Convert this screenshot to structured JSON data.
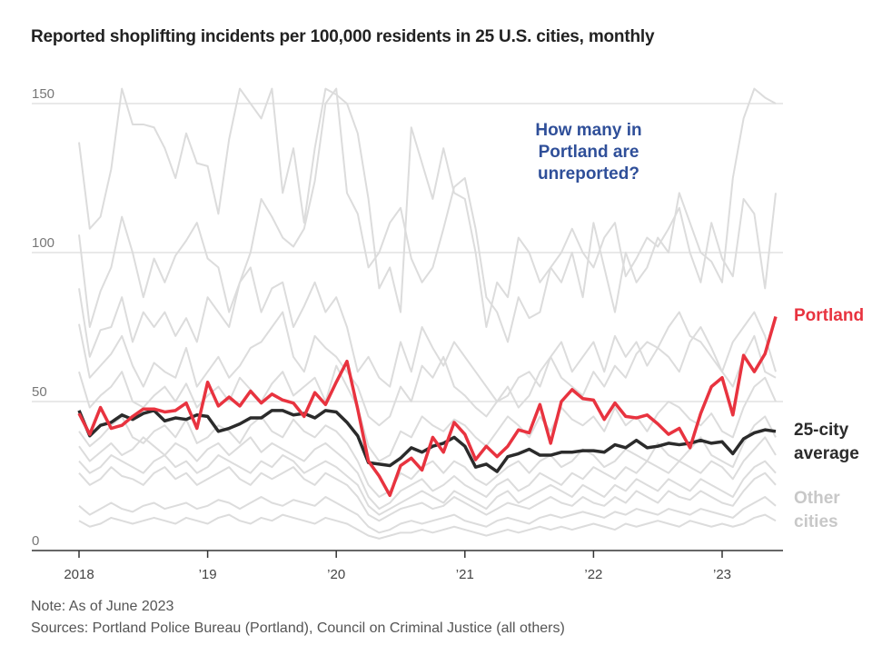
{
  "chart_data": {
    "type": "line",
    "title": "Reported shoplifting incidents per 100,000 residents in 25 U.S. cities, monthly",
    "x_start": "2018-01",
    "x_end": "2023-06",
    "x_ticks": [
      "2018",
      "’19",
      "’20",
      "’21",
      "’22",
      "’23"
    ],
    "y_ticks": [
      0,
      50,
      100,
      150
    ],
    "ylim": [
      0,
      155
    ],
    "grid": true,
    "annotation": "How many in Portland are unreported?",
    "colors": {
      "portland": "#e8333f",
      "average": "#2b2b2b",
      "other": "#dcdcdc",
      "annotation": "#2f4f99"
    },
    "series": [
      {
        "name": "Portland",
        "values": [
          46,
          39,
          48,
          41,
          42,
          45,
          47.5,
          47.5,
          46.5,
          47,
          49.5,
          41,
          56.5,
          48.5,
          51.5,
          48.5,
          53.5,
          49.5,
          52.5,
          50.5,
          49.5,
          45,
          53,
          49,
          56.5,
          63.5,
          47.5,
          30,
          25,
          18.5,
          28.5,
          31,
          27,
          38,
          33,
          43,
          39,
          30.5,
          35,
          31.5,
          35,
          40.5,
          39.5,
          49,
          36,
          50,
          54,
          51,
          50.5,
          44,
          49.5,
          45,
          44.5,
          45.5,
          42.5,
          39,
          41,
          34.5,
          46,
          55,
          58,
          45.5,
          65.5,
          60,
          66,
          78.5
        ]
      },
      {
        "name": "25-city average",
        "values": [
          47,
          38.5,
          42,
          43,
          45.5,
          44,
          46,
          47,
          43.5,
          44.5,
          44,
          45.5,
          45,
          40,
          41,
          42.5,
          44.5,
          44.5,
          47,
          47,
          45.5,
          46,
          44.5,
          47,
          46.5,
          43,
          38.5,
          29.5,
          29,
          28.5,
          31,
          34.5,
          33,
          35,
          36,
          38,
          35,
          28,
          29,
          26.5,
          31.5,
          32.5,
          34,
          32,
          32,
          33,
          33,
          33.5,
          33.5,
          33,
          35.5,
          34.5,
          37,
          34.5,
          35,
          36,
          35.5,
          36,
          37,
          36,
          36.5,
          32.5,
          37.5,
          39.5,
          40.5,
          40
        ]
      },
      {
        "name": "Other cities",
        "values": [
          137,
          108,
          112,
          128,
          155,
          143,
          143,
          142,
          135,
          125,
          140,
          130,
          129,
          113,
          138,
          155,
          150,
          145,
          155,
          120,
          135,
          110,
          135,
          155,
          153,
          150,
          140,
          118,
          88,
          95,
          80,
          142,
          130,
          118,
          135,
          120,
          118,
          100,
          75,
          90,
          85,
          105,
          100,
          90,
          95,
          90,
          100,
          85,
          110,
          95,
          80,
          100,
          90,
          95,
          105,
          100,
          120,
          110,
          100,
          97,
          90,
          125,
          145,
          155,
          152,
          150
        ]
      },
      {
        "name": "",
        "values": [
          106,
          75,
          87,
          95,
          112,
          100,
          85,
          98,
          90,
          99,
          104,
          110,
          98,
          95,
          80,
          90,
          100,
          118,
          112,
          105,
          102,
          108,
          124,
          150,
          155,
          120,
          113,
          95,
          100,
          110,
          115,
          98,
          90,
          95,
          108,
          122,
          125,
          108,
          85,
          80,
          70,
          85,
          78,
          80,
          95,
          100,
          108,
          100,
          95,
          105,
          110,
          92,
          98,
          105,
          102,
          108,
          115,
          100,
          90,
          110,
          98,
          92,
          118,
          113,
          88,
          120
        ]
      },
      {
        "name": "",
        "values": [
          88,
          65,
          74,
          75,
          85,
          70,
          80,
          75,
          80,
          72,
          78,
          70,
          85,
          80,
          75,
          90,
          95,
          80,
          88,
          90,
          75,
          82,
          90,
          80,
          85,
          75,
          60,
          65,
          58,
          55,
          70,
          60,
          75,
          68,
          62,
          70,
          65,
          60,
          55,
          50,
          52,
          58,
          60,
          55,
          65,
          70,
          60,
          65,
          70,
          60,
          72,
          65,
          70,
          62,
          68,
          75,
          80,
          72,
          70,
          65,
          60,
          70,
          75,
          80,
          72,
          60
        ]
      },
      {
        "name": "",
        "values": [
          76,
          58,
          62,
          66,
          72,
          62,
          55,
          63,
          60,
          58,
          68,
          55,
          60,
          65,
          58,
          62,
          68,
          70,
          75,
          80,
          65,
          60,
          72,
          68,
          65,
          60,
          55,
          45,
          42,
          45,
          55,
          50,
          62,
          58,
          65,
          55,
          52,
          48,
          45,
          50,
          55,
          48,
          52,
          60,
          65,
          58,
          55,
          52,
          60,
          55,
          62,
          58,
          66,
          70,
          68,
          65,
          60,
          70,
          75,
          68,
          60,
          55,
          65,
          72,
          60,
          58
        ]
      },
      {
        "name": "",
        "values": [
          60,
          48,
          52,
          55,
          60,
          50,
          48,
          52,
          55,
          50,
          56,
          48,
          52,
          55,
          50,
          58,
          54,
          50,
          56,
          60,
          52,
          55,
          58,
          50,
          62,
          55,
          48,
          35,
          30,
          32,
          40,
          38,
          45,
          42,
          40,
          44,
          42,
          38,
          35,
          40,
          45,
          42,
          38,
          45,
          40,
          48,
          44,
          42,
          45,
          40,
          48,
          42,
          45,
          40,
          46,
          50,
          48,
          44,
          42,
          46,
          40,
          38,
          48,
          55,
          58,
          50
        ]
      },
      {
        "name": "",
        "values": [
          40,
          35,
          38,
          42,
          45,
          38,
          36,
          40,
          42,
          38,
          44,
          36,
          38,
          42,
          40,
          36,
          42,
          45,
          40,
          38,
          44,
          40,
          38,
          42,
          40,
          36,
          30,
          22,
          18,
          20,
          26,
          24,
          28,
          30,
          26,
          30,
          28,
          24,
          22,
          25,
          28,
          30,
          26,
          30,
          32,
          28,
          30,
          34,
          32,
          28,
          30,
          34,
          32,
          30,
          36,
          32,
          30,
          34,
          38,
          32,
          30,
          28,
          36,
          42,
          45,
          38
        ]
      },
      {
        "name": "",
        "values": [
          35,
          30,
          33,
          36,
          32,
          34,
          38,
          35,
          32,
          36,
          34,
          30,
          34,
          36,
          32,
          35,
          38,
          33,
          36,
          34,
          32,
          30,
          34,
          36,
          33,
          30,
          26,
          18,
          14,
          16,
          20,
          22,
          24,
          20,
          22,
          25,
          22,
          20,
          18,
          22,
          24,
          20,
          22,
          26,
          24,
          22,
          26,
          24,
          28,
          26,
          24,
          28,
          26,
          30,
          28,
          26,
          30,
          28,
          26,
          30,
          28,
          24,
          30,
          34,
          38,
          32
        ]
      },
      {
        "name": "",
        "values": [
          30,
          26,
          28,
          32,
          30,
          28,
          26,
          30,
          32,
          28,
          30,
          26,
          28,
          32,
          30,
          28,
          26,
          30,
          28,
          32,
          30,
          26,
          28,
          30,
          28,
          25,
          22,
          15,
          12,
          14,
          16,
          18,
          20,
          18,
          16,
          20,
          18,
          16,
          14,
          18,
          20,
          16,
          18,
          20,
          22,
          20,
          18,
          22,
          20,
          18,
          22,
          20,
          24,
          22,
          20,
          24,
          22,
          20,
          24,
          22,
          20,
          18,
          24,
          28,
          30,
          26
        ]
      },
      {
        "name": "",
        "values": [
          26,
          22,
          24,
          28,
          25,
          24,
          22,
          26,
          28,
          24,
          26,
          22,
          24,
          26,
          28,
          24,
          22,
          26,
          24,
          26,
          28,
          24,
          22,
          26,
          24,
          22,
          18,
          12,
          10,
          12,
          14,
          15,
          16,
          14,
          15,
          18,
          16,
          14,
          12,
          14,
          16,
          15,
          14,
          16,
          18,
          16,
          15,
          18,
          16,
          15,
          18,
          16,
          20,
          18,
          16,
          20,
          18,
          17,
          20,
          18,
          16,
          15,
          20,
          24,
          26,
          22
        ]
      },
      {
        "name": "",
        "values": [
          15,
          12,
          14,
          16,
          14,
          13,
          15,
          16,
          14,
          15,
          16,
          14,
          15,
          17,
          16,
          14,
          16,
          18,
          16,
          15,
          17,
          16,
          15,
          18,
          16,
          14,
          12,
          8,
          6,
          7,
          9,
          10,
          9,
          10,
          11,
          12,
          10,
          9,
          8,
          10,
          11,
          10,
          9,
          11,
          12,
          11,
          12,
          13,
          12,
          11,
          13,
          12,
          14,
          13,
          12,
          14,
          13,
          12,
          14,
          13,
          12,
          11,
          14,
          16,
          18,
          15
        ]
      },
      {
        "name": "",
        "values": [
          10,
          8,
          9,
          11,
          10,
          9,
          10,
          11,
          10,
          9,
          11,
          10,
          9,
          11,
          12,
          10,
          9,
          11,
          10,
          12,
          11,
          10,
          9,
          11,
          10,
          9,
          7,
          5,
          4,
          5,
          6,
          6,
          7,
          6,
          7,
          8,
          7,
          6,
          5,
          6,
          7,
          6,
          7,
          8,
          7,
          8,
          7,
          8,
          9,
          8,
          7,
          9,
          8,
          9,
          10,
          9,
          8,
          10,
          9,
          8,
          9,
          8,
          9,
          11,
          12,
          10
        ]
      }
    ]
  },
  "labels": {
    "portland": "Portland",
    "average": "25-city average",
    "other": "Other cities"
  },
  "notes": {
    "note": "Note: As of June 2023",
    "sources": "Sources: Portland Police Bureau (Portland), Council on Criminal Justice (all others)"
  }
}
